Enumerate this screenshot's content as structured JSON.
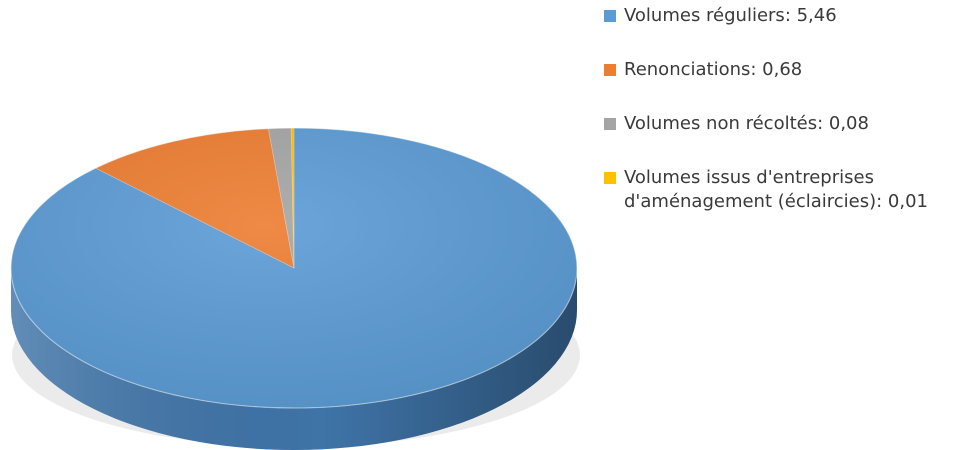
{
  "chart_data": {
    "type": "pie",
    "style": "3d",
    "legend_position": "right",
    "slices": [
      {
        "label": "Volumes réguliers: 5,46",
        "value": 5.46,
        "color": "#5b9bd5",
        "side_color": "#3f74a8"
      },
      {
        "label": "Renonciations: 0,68",
        "value": 0.68,
        "color": "#ed7d31",
        "side_color": "#b95c1d"
      },
      {
        "label": "Volumes non récoltés: 0,08",
        "value": 0.08,
        "color": "#a5a5a5",
        "side_color": "#7a7a7a"
      },
      {
        "label_lines": [
          "Volumes issus d'entreprises",
          "d'aménagement (éclaircies): 0,01"
        ],
        "value": 0.01,
        "color": "#ffc000",
        "side_color": "#c99600"
      }
    ]
  }
}
